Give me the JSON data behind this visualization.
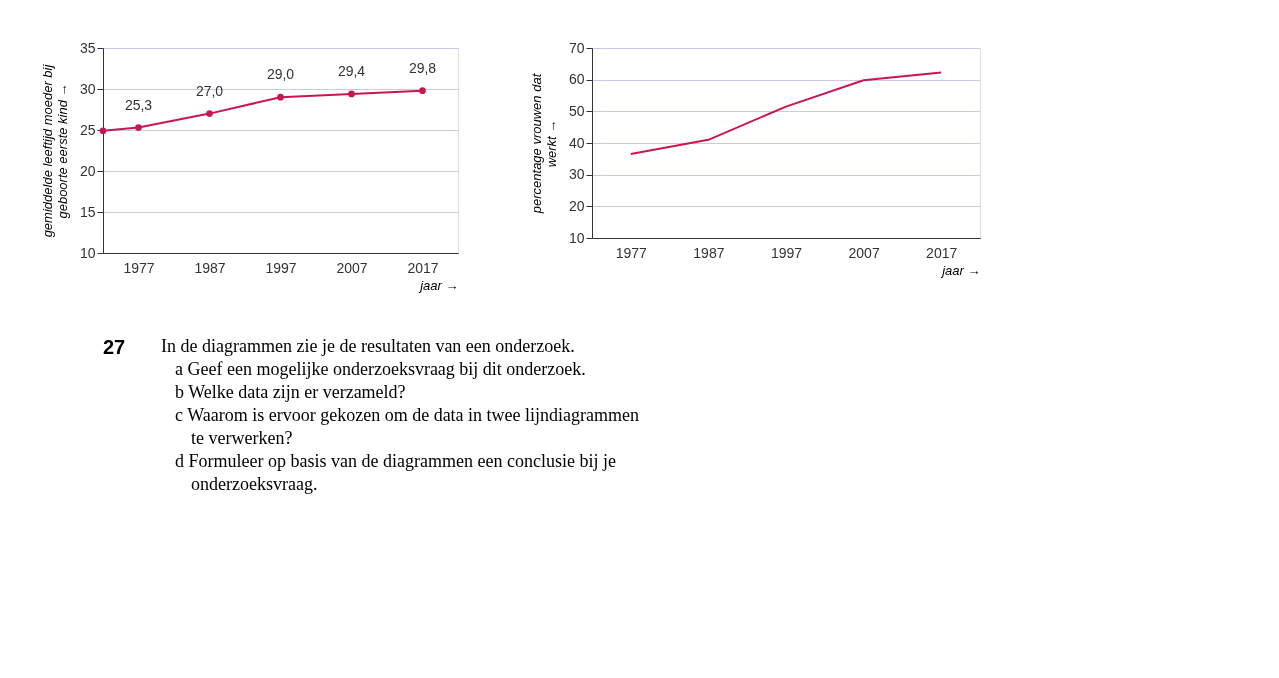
{
  "chart_data": [
    {
      "type": "line",
      "xlabel": "jaar →",
      "ylabel": "gemiddelde leeftijd moeder bij geboorte eerste kind →",
      "x": [
        1972,
        1977,
        1987,
        1997,
        2007,
        2017
      ],
      "series": [
        {
          "color": "#c8174f",
          "values": [
            24.9,
            25.3,
            27.0,
            29.0,
            29.4,
            29.8
          ],
          "value_labels": [
            null,
            "25,3",
            "27,0",
            "29,0",
            "29,4",
            "29,8"
          ]
        }
      ],
      "xlim": [
        1972,
        2022
      ],
      "xticks": [
        1977,
        1987,
        1997,
        2007,
        2017
      ],
      "ylim": [
        10,
        35
      ],
      "yticks": [
        10,
        15,
        20,
        25,
        30,
        35
      ],
      "grid": "y",
      "marker": "circle",
      "line_style": "solid",
      "annotations": [
        "27",
        "In de diagrammen zie je de resultaten van een onderzoek.",
        "a Geef een mogelijke onderzoeksvraag bij dit onderzoek.",
        "b Welke data zijn er verzameld?",
        "c Waarom is ervoor gekozen om de data in twee lijndiagrammen te verwerken?",
        "d Formuleer op basis van de diagrammen een conclusie bij je onderzoeksvraag."
      ]
    },
    {
      "type": "line",
      "xlabel": "jaar →",
      "ylabel": "percentage vrouwen dat werkt →",
      "x": [
        1977,
        1987,
        1997,
        2007,
        2017
      ],
      "series": [
        {
          "color": "#c8174f",
          "values": [
            36.5,
            41,
            51.5,
            59.8,
            62.3
          ]
        }
      ],
      "xlim": [
        1972,
        2022
      ],
      "xticks": [
        1977,
        1987,
        1997,
        2007,
        2017
      ],
      "ylim": [
        10,
        70
      ],
      "yticks": [
        10,
        20,
        30,
        40,
        50,
        60,
        70
      ],
      "grid": "y",
      "marker": "none",
      "line_style": "solid"
    }
  ]
}
